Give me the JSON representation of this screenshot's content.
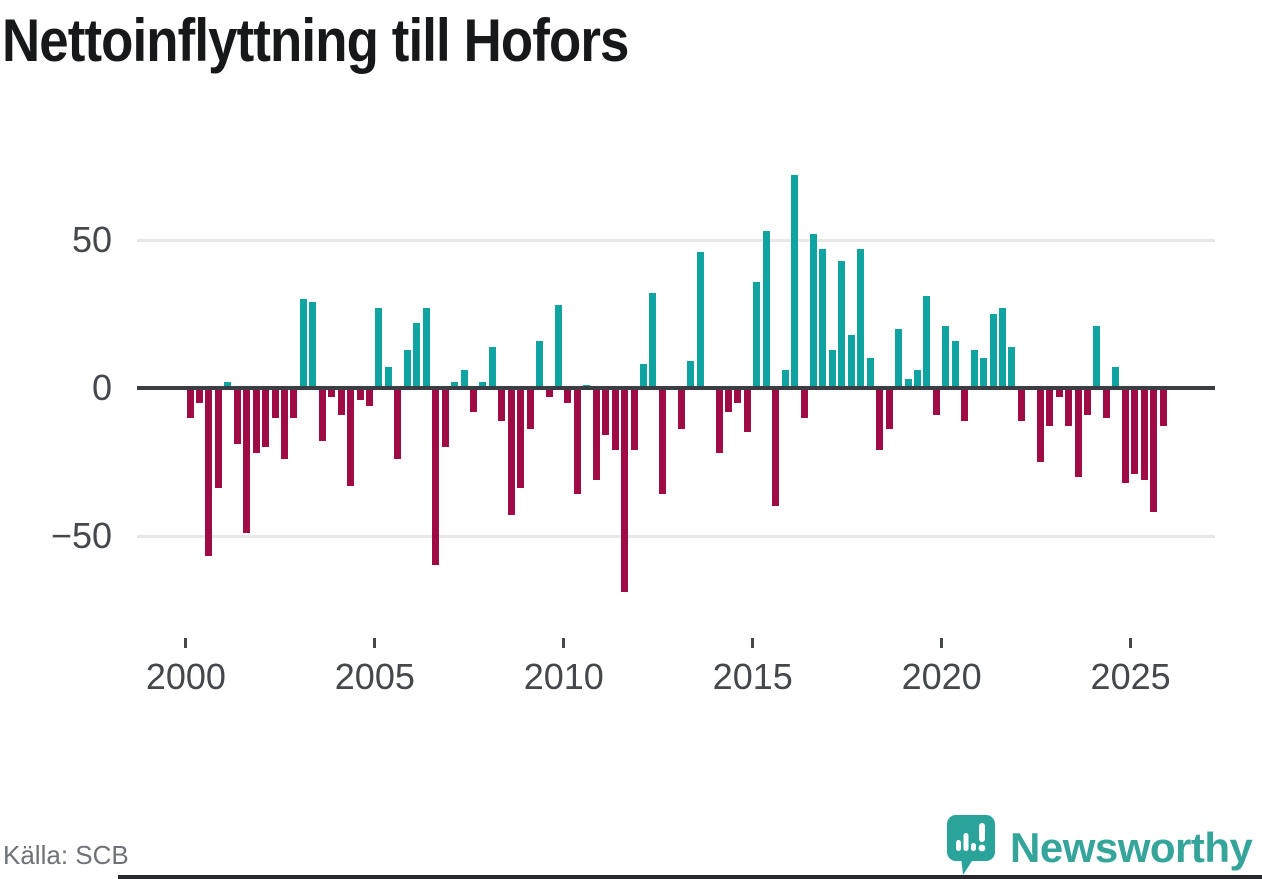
{
  "title": "Nettoinflyttning till Hofors",
  "source": "Källa: SCB",
  "logo": {
    "brand": "Newsworthy",
    "icon": "newsworthy-speech-bubble-chart-icon"
  },
  "colors": {
    "positive": "#0fa3a1",
    "negative": "#9e0b45",
    "grid": "#e7e7e9",
    "zero_axis": "#3a3e43",
    "tick_label": "#44484d",
    "title": "#16181a",
    "source": "#6e7278",
    "brand": "#35a49b"
  },
  "y_axis": {
    "ticks": [
      {
        "label": "50",
        "value": 50
      },
      {
        "label": "0",
        "value": 0
      },
      {
        "label": "−50",
        "value": -50
      }
    ]
  },
  "x_axis": {
    "tick_years": [
      "2000",
      "2005",
      "2010",
      "2015",
      "2020",
      "2025"
    ]
  },
  "chart_data": {
    "type": "bar",
    "title": "Nettoinflyttning till Hofors",
    "x_period": "quarterly",
    "x_start": "2000Q1",
    "x_end": "2025Q4",
    "xlabel": "",
    "ylabel": "",
    "ylim": [
      -75,
      80
    ],
    "grid": "horizontal",
    "legend": "none",
    "positive_color": "#0fa3a1",
    "negative_color": "#9e0b45",
    "values": [
      -10,
      -5,
      -57,
      -34,
      2,
      -19,
      -49,
      -22,
      -20,
      -10,
      -24,
      -10,
      30,
      29,
      -18,
      -3,
      -9,
      -33,
      -4,
      -6,
      27,
      7,
      -24,
      13,
      22,
      27,
      -60,
      -20,
      2,
      6,
      -8,
      2,
      14,
      -11,
      -43,
      -34,
      -14,
      16,
      -3,
      28,
      -5,
      -36,
      1,
      -31,
      -16,
      -21,
      -69,
      -21,
      8,
      32,
      -36,
      0,
      -14,
      9,
      46,
      0,
      -22,
      -8,
      -5,
      -15,
      36,
      53,
      -40,
      6,
      72,
      -10,
      52,
      47,
      13,
      43,
      18,
      47,
      10,
      -21,
      -14,
      20,
      3,
      6,
      31,
      -9,
      21,
      16,
      -11,
      13,
      10,
      25,
      27,
      14,
      -11,
      0,
      -25,
      -13,
      -3,
      -13,
      -30,
      -9,
      21,
      -10,
      7,
      -32,
      -29,
      -31,
      -42,
      -13
    ]
  }
}
